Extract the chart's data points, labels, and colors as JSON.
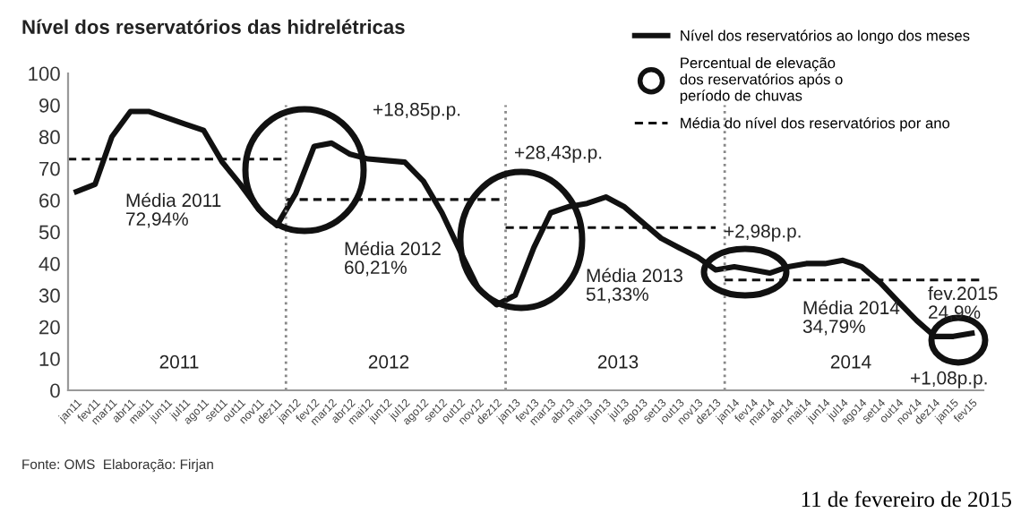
{
  "chart_data": {
    "type": "line",
    "title": "Nível dos reservatórios das hidrelétricas",
    "x": [
      "2011-01",
      "2011-02",
      "2011-03",
      "2011-04",
      "2011-05",
      "2011-06",
      "2011-07",
      "2011-08",
      "2011-09",
      "2011-10",
      "2011-11",
      "2011-12",
      "2012-01",
      "2012-02",
      "2012-03",
      "2012-04",
      "2012-05",
      "2012-06",
      "2012-07",
      "2012-08",
      "2012-09",
      "2012-10",
      "2012-11",
      "2012-12",
      "2013-01",
      "2013-02",
      "2013-03",
      "2013-04",
      "2013-05",
      "2013-06",
      "2013-07",
      "2013-08",
      "2013-09",
      "2013-10",
      "2013-11",
      "2013-12",
      "2014-01",
      "2014-02",
      "2014-03",
      "2014-04",
      "2014-05",
      "2014-06",
      "2014-07",
      "2014-08",
      "2014-09",
      "2014-10",
      "2014-11",
      "2014-12",
      "2015-01",
      "2015-02"
    ],
    "series": [
      {
        "name": "Nível dos reservatórios ao longo dos meses",
        "color": "#111111",
        "line_style": "solid",
        "values": [
          62.7,
          65,
          80,
          88,
          88,
          86,
          84,
          82,
          72,
          65,
          57,
          52,
          62,
          77,
          78,
          74.5,
          73,
          72.5,
          72,
          66,
          56,
          44,
          32,
          27,
          30,
          45,
          56,
          58,
          59,
          61,
          58,
          53,
          48,
          45,
          42,
          38,
          39,
          38,
          37,
          39,
          40,
          40,
          41,
          39,
          34,
          28,
          22,
          17,
          17,
          18
        ]
      },
      {
        "name": "Média do nível dos reservatórios por ano",
        "color": "#111111",
        "line_style": "dashed",
        "x": [
          "2010-12-18",
          "2011-12-16"
        ],
        "values": [
          72.94,
          72.94
        ]
      },
      {
        "color": "#111111",
        "line_style": "dashed",
        "x": [
          "2011-12-16",
          "2012-12-16"
        ],
        "values": [
          60.21,
          60.21
        ]
      },
      {
        "color": "#111111",
        "line_style": "dashed",
        "x": [
          "2012-12-16",
          "2013-12-01"
        ],
        "values": [
          51.33,
          51.33
        ]
      },
      {
        "color": "#111111",
        "line_style": "dashed",
        "x": [
          "2013-12-16",
          "2015-02-15"
        ],
        "values": [
          34.79,
          34.79
        ]
      }
    ],
    "xlim": [
      "2010-12-18",
      "2015-02-20"
    ],
    "xticks": [
      {
        "value": "2011-01",
        "label": "jan11"
      },
      {
        "value": "2011-02",
        "label": "fev11"
      },
      {
        "value": "2011-03",
        "label": "mar11"
      },
      {
        "value": "2011-04",
        "label": "abr11"
      },
      {
        "value": "2011-05",
        "label": "mai11"
      },
      {
        "value": "2011-06",
        "label": "jun11"
      },
      {
        "value": "2011-07",
        "label": "jul11"
      },
      {
        "value": "2011-08",
        "label": "ago11"
      },
      {
        "value": "2011-09",
        "label": "set11"
      },
      {
        "value": "2011-10",
        "label": "out11"
      },
      {
        "value": "2011-11",
        "label": "nov11"
      },
      {
        "value": "2011-12",
        "label": "dez11"
      },
      {
        "value": "2012-01",
        "label": "jan12"
      },
      {
        "value": "2012-02",
        "label": "fev12"
      },
      {
        "value": "2012-03",
        "label": "mar12"
      },
      {
        "value": "2012-04",
        "label": "abr12"
      },
      {
        "value": "2012-05",
        "label": "mai12"
      },
      {
        "value": "2012-06",
        "label": "jun12"
      },
      {
        "value": "2012-07",
        "label": "jul12"
      },
      {
        "value": "2012-08",
        "label": "ago12"
      },
      {
        "value": "2012-09",
        "label": "set12"
      },
      {
        "value": "2012-10",
        "label": "out12"
      },
      {
        "value": "2012-11",
        "label": "nov12"
      },
      {
        "value": "2012-12",
        "label": "dez12"
      },
      {
        "value": "2013-01",
        "label": "jan13"
      },
      {
        "value": "2013-02",
        "label": "fev13"
      },
      {
        "value": "2013-03",
        "label": "mar13"
      },
      {
        "value": "2013-04",
        "label": "abr13"
      },
      {
        "value": "2013-05",
        "label": "mai13"
      },
      {
        "value": "2013-06",
        "label": "jun13"
      },
      {
        "value": "2013-07",
        "label": "jul13"
      },
      {
        "value": "2013-08",
        "label": "ago13"
      },
      {
        "value": "2013-09",
        "label": "set13"
      },
      {
        "value": "2013-10",
        "label": "out13"
      },
      {
        "value": "2013-11",
        "label": "nov13"
      },
      {
        "value": "2013-12",
        "label": "dez13"
      },
      {
        "value": "2014-01",
        "label": "jan14"
      },
      {
        "value": "2014-02",
        "label": "fev14"
      },
      {
        "value": "2014-03",
        "label": "mar14"
      },
      {
        "value": "2014-04",
        "label": "abr14"
      },
      {
        "value": "2014-05",
        "label": "mai14"
      },
      {
        "value": "2014-06",
        "label": "jun14"
      },
      {
        "value": "2014-07",
        "label": "jul14"
      },
      {
        "value": "2014-08",
        "label": "ago14"
      },
      {
        "value": "2014-09",
        "label": "set14"
      },
      {
        "value": "2014-10",
        "label": "out14"
      },
      {
        "value": "2014-11",
        "label": "nov14"
      },
      {
        "value": "2014-12",
        "label": "dez14"
      },
      {
        "value": "2015-01",
        "label": "jan15"
      },
      {
        "value": "2015-02",
        "label": "fev15"
      }
    ],
    "ylim": [
      0,
      100
    ],
    "yticks": [
      0,
      10,
      20,
      30,
      40,
      50,
      60,
      70,
      80,
      90,
      100
    ],
    "ref_lines": [
      {
        "axis": "x",
        "value": "2011-12-16",
        "color": "#888888",
        "line_style": "dotted"
      },
      {
        "axis": "x",
        "value": "2012-12-16",
        "color": "#888888",
        "line_style": "dotted"
      },
      {
        "axis": "x",
        "value": "2013-12-16",
        "color": "#888888",
        "line_style": "dotted"
      }
    ],
    "annotations": [
      "Média 2011\n72,94%",
      "Média 2012\n60,21%",
      "Média 2013\n51,33%",
      "Média 2014\n34,79%",
      "+18,85p.p.",
      "+28,43p.p.",
      "+2,98p.p.",
      "+1,08p.p.",
      "fev.2015\n24,9%",
      "2011",
      "2012",
      "2013",
      "2014",
      "Percentual de elevação\ndos reservatórios após o\nperíodo de chuvas",
      "Fonte: OMS  Elaboração: Firjan",
      "11 de fevereiro de 2015"
    ],
    "grid": false,
    "legend": "top right",
    "marker": "none"
  }
}
